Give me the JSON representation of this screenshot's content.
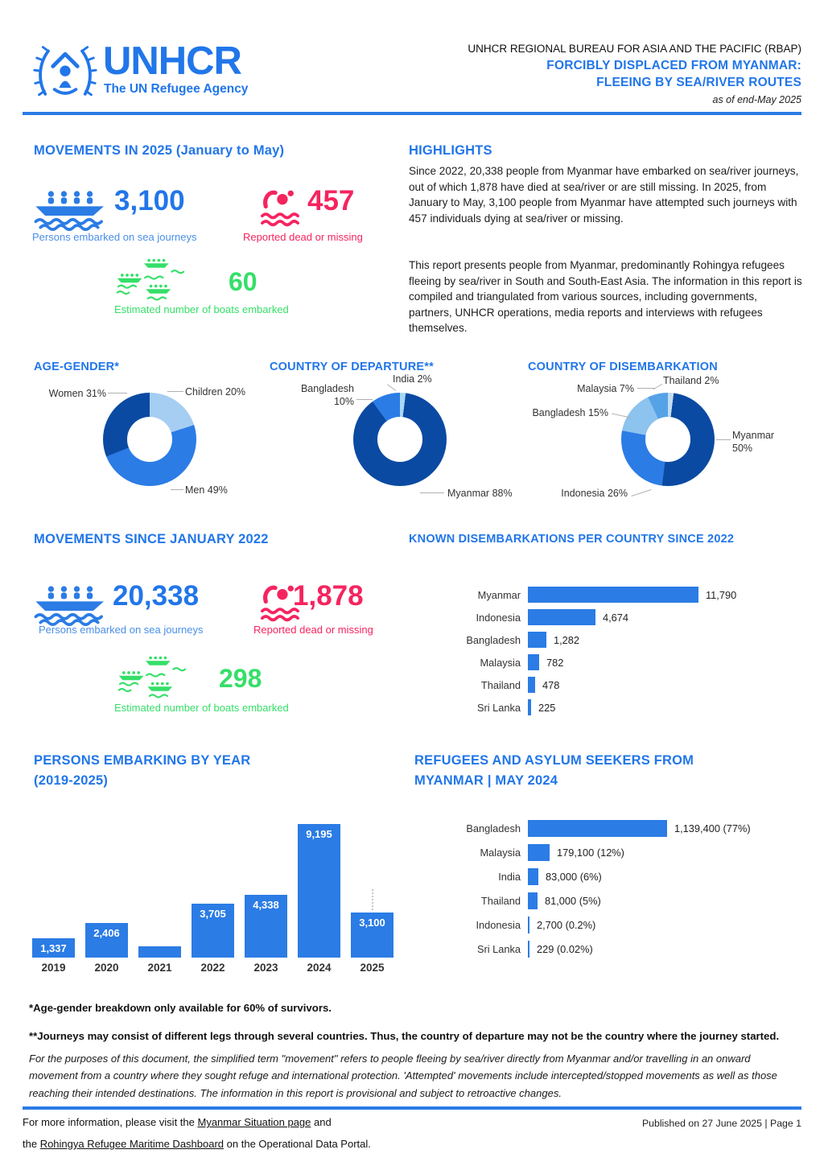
{
  "header": {
    "logo_name": "UNHCR",
    "logo_tagline": "The UN Refugee Agency",
    "bureau": "UNHCR REGIONAL BUREAU FOR ASIA AND THE PACIFIC (RBAP)",
    "title_line1": "FORCIBLY DISPLACED FROM MYANMAR:",
    "title_line2": "FLEEING BY SEA/RIVER ROUTES",
    "as_of": "as of end-May 2025"
  },
  "movements_2025": {
    "title": "MOVEMENTS IN 2025 (January to May)",
    "embarked": {
      "value": "3,100",
      "label": "Persons embarked on sea journeys"
    },
    "dead_missing": {
      "value": "457",
      "label": "Reported dead or missing"
    },
    "boats": {
      "value": "60",
      "label": "Estimated number of boats embarked"
    }
  },
  "highlights": {
    "title": "HIGHLIGHTS",
    "para1": "Since 2022, 20,338 people from Myanmar have embarked on sea/river journeys, out of which 1,878 have died at sea/river or are still missing. In 2025, from January to May, 3,100 people from Myanmar have attempted such journeys with 457 individuals dying at sea/river or missing.",
    "para2": "This report presents people from Myanmar, predominantly Rohingya refugees fleeing by sea/river in South and South-East Asia. The information in this report is compiled and triangulated from various sources, including governments, partners, UNHCR operations, media reports and interviews with refugees themselves."
  },
  "movements_2022": {
    "title": "MOVEMENTS SINCE JANUARY 2022",
    "embarked": {
      "value": "20,338",
      "label": "Persons embarked on sea journeys"
    },
    "dead_missing": {
      "value": "1,878",
      "label": "Reported dead or missing"
    },
    "boats": {
      "value": "298",
      "label": "Estimated number of boats embarked"
    }
  },
  "chart_data": [
    {
      "type": "pie",
      "title": "AGE-GENDER*",
      "legend_position": "callouts",
      "segments": [
        {
          "label": "Children",
          "value": 20,
          "callout": "Children 20%",
          "color": "#a6cdf2"
        },
        {
          "label": "Men",
          "value": 49,
          "callout": "Men 49%",
          "color": "#2b7ce5"
        },
        {
          "label": "Women",
          "value": 31,
          "callout": "Women 31%",
          "color": "#0b4aa2"
        }
      ]
    },
    {
      "type": "pie",
      "title": "COUNTRY OF DEPARTURE**",
      "legend_position": "callouts",
      "segments": [
        {
          "label": "India",
          "value": 2,
          "callout": "India 2%",
          "color": "#a8d7f5"
        },
        {
          "label": "Myanmar",
          "value": 88,
          "callout": "Myanmar 88%",
          "color": "#0b4aa2"
        },
        {
          "label": "Bangladesh",
          "value": 10,
          "callout": "Bangladesh 10%",
          "color": "#2b7ce5"
        }
      ]
    },
    {
      "type": "pie",
      "title": "COUNTRY OF DISEMBARKATION",
      "legend_position": "callouts",
      "segments": [
        {
          "label": "Thailand",
          "value": 2,
          "callout": "Thailand 2%",
          "color": "#c4dcf3"
        },
        {
          "label": "Myanmar",
          "value": 50,
          "callout": "Myanmar 50%",
          "color": "#0b4aa2"
        },
        {
          "label": "Indonesia",
          "value": 26,
          "callout": "Indonesia 26%",
          "color": "#2b7ce5"
        },
        {
          "label": "Bangladesh",
          "value": 15,
          "callout": "Bangladesh 15%",
          "color": "#8cc3ef"
        },
        {
          "label": "Malaysia",
          "value": 7,
          "callout": "Malaysia 7%",
          "color": "#55a2e6"
        }
      ]
    },
    {
      "type": "bar",
      "orientation": "horizontal",
      "title": "KNOWN DISEMBARKATIONS PER COUNTRY SINCE 2022",
      "bar_color": "#2b7ce5",
      "xlim": [
        0,
        11790
      ],
      "rows": [
        {
          "label": "Myanmar",
          "value": 11790,
          "display": "11,790"
        },
        {
          "label": "Indonesia",
          "value": 4674,
          "display": "4,674"
        },
        {
          "label": "Bangladesh",
          "value": 1282,
          "display": "1,282"
        },
        {
          "label": "Malaysia",
          "value": 782,
          "display": "782"
        },
        {
          "label": "Thailand",
          "value": 478,
          "display": "478"
        },
        {
          "label": "Sri Lanka",
          "value": 225,
          "display": "225"
        }
      ]
    },
    {
      "type": "bar",
      "orientation": "vertical",
      "title": "PERSONS EMBARKING BY YEAR (2019-2025)",
      "title_line1": "PERSONS EMBARKING BY YEAR",
      "title_line2": "(2019-2025)",
      "bar_color": "#2b7ce5",
      "ymax": 9195,
      "bars": [
        {
          "year": "2019",
          "value": 1337,
          "label": "1,337"
        },
        {
          "year": "2020",
          "value": 2406,
          "label": "2,406"
        },
        {
          "year": "2021",
          "value": 780,
          "label": ""
        },
        {
          "year": "2022",
          "value": 3705,
          "label": "3,705"
        },
        {
          "year": "2023",
          "value": 4338,
          "label": "4,338"
        },
        {
          "year": "2024",
          "value": 9195,
          "label": "9,195"
        },
        {
          "year": "2025",
          "value": 3100,
          "label": "3,100",
          "dotted": true
        }
      ]
    },
    {
      "type": "bar",
      "orientation": "horizontal",
      "title": "REFUGEES AND ASYLUM SEEKERS FROM MYANMAR | MAY 2024",
      "title_line1": "REFUGEES AND ASYLUM SEEKERS FROM",
      "title_line2": "MYANMAR  |  MAY 2024",
      "bar_color": "#2b7ce5",
      "xlim": [
        0,
        1139400
      ],
      "rows": [
        {
          "label": "Bangladesh",
          "value": 1139400,
          "display": "1,139,400 (77%)"
        },
        {
          "label": "Malaysia",
          "value": 179100,
          "display": "179,100 (12%)"
        },
        {
          "label": "India",
          "value": 83000,
          "display": "83,000 (6%)"
        },
        {
          "label": "Thailand",
          "value": 81000,
          "display": "81,000 (5%)"
        },
        {
          "label": "Indonesia",
          "value": 2700,
          "display": "2,700 (0.2%)"
        },
        {
          "label": "Sri Lanka",
          "value": 229,
          "display": "229 (0.02%)"
        }
      ]
    }
  ],
  "footnotes": {
    "line1": "*Age-gender breakdown only available for 60% of survivors.",
    "line2": "**Journeys may consist of different legs through several countries. Thus, the country of departure may not be the country where the journey started.",
    "para": "For the purposes of this document, the simplified term \"movement\" refers to people fleeing by sea/river directly from Myanmar and/or travelling in an onward movement from a country where they sought refuge and international protection. 'Attempted' movements include intercepted/stopped movements as well as those reaching their intended destinations. The information in this report is provisional and subject to retroactive changes."
  },
  "footer": {
    "line1_prefix": "For more information, please visit the ",
    "link1": "Myanmar Situation page",
    "line1_suffix": " and",
    "line2_prefix": "the ",
    "link2": "Rohingya Refugee Maritime Dashboard",
    "line2_suffix": " on the Operational Data Portal.",
    "published": "Published on 27 June 2025   |   Page 1"
  },
  "colors": {
    "primary_blue": "#2176e9",
    "bar_blue": "#2b7ce5",
    "dark_blue": "#0b4aa2",
    "light_blue": "#a6cdf2",
    "sky_blue": "#55a2e6",
    "pale_blue": "#c4dcf3",
    "accent_pink": "#f5245f",
    "accent_green": "#35df68"
  }
}
